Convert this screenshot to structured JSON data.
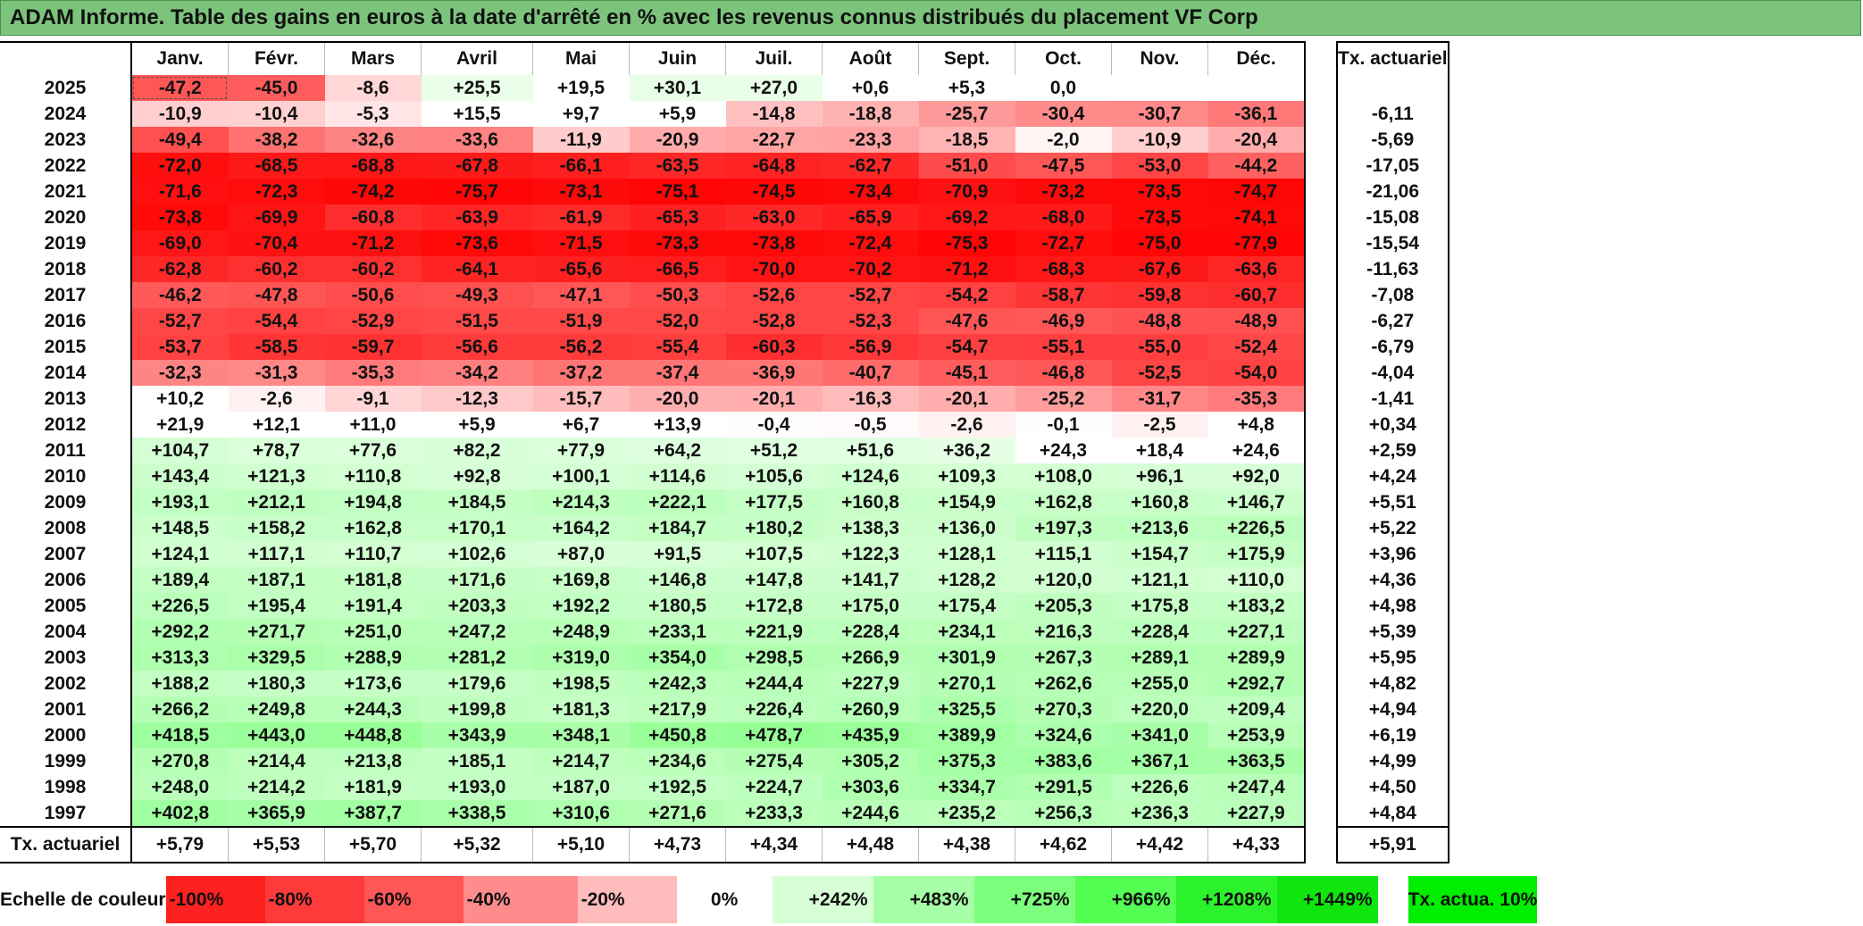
{
  "title": "ADAM Informe. Table des gains en euros à la date d'arrêté en % avec les revenus connus distribués du placement VF Corp",
  "months": [
    "Janv.",
    "Févr.",
    "Mars",
    "Avril",
    "Mai",
    "Juin",
    "Juil.",
    "Août",
    "Sept.",
    "Oct.",
    "Nov.",
    "Déc."
  ],
  "actuarial_header": "Tx. actuariel",
  "rows": [
    {
      "year": "2025",
      "values": [
        "-47,2",
        "-45,0",
        "-8,6",
        "+25,5",
        "+19,5",
        "+30,1",
        "+27,0",
        "+0,6",
        "+5,3",
        "0,0",
        "",
        ""
      ],
      "rate": ""
    },
    {
      "year": "2024",
      "values": [
        "-10,9",
        "-10,4",
        "-5,3",
        "+15,5",
        "+9,7",
        "+5,9",
        "-14,8",
        "-18,8",
        "-25,7",
        "-30,4",
        "-30,7",
        "-36,1"
      ],
      "rate": "-6,11"
    },
    {
      "year": "2023",
      "values": [
        "-49,4",
        "-38,2",
        "-32,6",
        "-33,6",
        "-11,9",
        "-20,9",
        "-22,7",
        "-23,3",
        "-18,5",
        "-2,0",
        "-10,9",
        "-20,4"
      ],
      "rate": "-5,69"
    },
    {
      "year": "2022",
      "values": [
        "-72,0",
        "-68,5",
        "-68,8",
        "-67,8",
        "-66,1",
        "-63,5",
        "-64,8",
        "-62,7",
        "-51,0",
        "-47,5",
        "-53,0",
        "-44,2"
      ],
      "rate": "-17,05"
    },
    {
      "year": "2021",
      "values": [
        "-71,6",
        "-72,3",
        "-74,2",
        "-75,7",
        "-73,1",
        "-75,1",
        "-74,5",
        "-73,4",
        "-70,9",
        "-73,2",
        "-73,5",
        "-74,7"
      ],
      "rate": "-21,06"
    },
    {
      "year": "2020",
      "values": [
        "-73,8",
        "-69,9",
        "-60,8",
        "-63,9",
        "-61,9",
        "-65,3",
        "-63,0",
        "-65,9",
        "-69,2",
        "-68,0",
        "-73,5",
        "-74,1"
      ],
      "rate": "-15,08"
    },
    {
      "year": "2019",
      "values": [
        "-69,0",
        "-70,4",
        "-71,2",
        "-73,6",
        "-71,5",
        "-73,3",
        "-73,8",
        "-72,4",
        "-75,3",
        "-72,7",
        "-75,0",
        "-77,9"
      ],
      "rate": "-15,54"
    },
    {
      "year": "2018",
      "values": [
        "-62,8",
        "-60,2",
        "-60,2",
        "-64,1",
        "-65,6",
        "-66,5",
        "-70,0",
        "-70,2",
        "-71,2",
        "-68,3",
        "-67,6",
        "-63,6"
      ],
      "rate": "-11,63"
    },
    {
      "year": "2017",
      "values": [
        "-46,2",
        "-47,8",
        "-50,6",
        "-49,3",
        "-47,1",
        "-50,3",
        "-52,6",
        "-52,7",
        "-54,2",
        "-58,7",
        "-59,8",
        "-60,7"
      ],
      "rate": "-7,08"
    },
    {
      "year": "2016",
      "values": [
        "-52,7",
        "-54,4",
        "-52,9",
        "-51,5",
        "-51,9",
        "-52,0",
        "-52,8",
        "-52,3",
        "-47,6",
        "-46,9",
        "-48,8",
        "-48,9"
      ],
      "rate": "-6,27"
    },
    {
      "year": "2015",
      "values": [
        "-53,7",
        "-58,5",
        "-59,7",
        "-56,6",
        "-56,2",
        "-55,4",
        "-60,3",
        "-56,9",
        "-54,7",
        "-55,1",
        "-55,0",
        "-52,4"
      ],
      "rate": "-6,79"
    },
    {
      "year": "2014",
      "values": [
        "-32,3",
        "-31,3",
        "-35,3",
        "-34,2",
        "-37,2",
        "-37,4",
        "-36,9",
        "-40,7",
        "-45,1",
        "-46,8",
        "-52,5",
        "-54,0"
      ],
      "rate": "-4,04"
    },
    {
      "year": "2013",
      "values": [
        "+10,2",
        "-2,6",
        "-9,1",
        "-12,3",
        "-15,7",
        "-20,0",
        "-20,1",
        "-16,3",
        "-20,1",
        "-25,2",
        "-31,7",
        "-35,3"
      ],
      "rate": "-1,41"
    },
    {
      "year": "2012",
      "values": [
        "+21,9",
        "+12,1",
        "+11,0",
        "+5,9",
        "+6,7",
        "+13,9",
        "-0,4",
        "-0,5",
        "-2,6",
        "-0,1",
        "-2,5",
        "+4,8"
      ],
      "rate": "+0,34"
    },
    {
      "year": "2011",
      "values": [
        "+104,7",
        "+78,7",
        "+77,6",
        "+82,2",
        "+77,9",
        "+64,2",
        "+51,2",
        "+51,6",
        "+36,2",
        "+24,3",
        "+18,4",
        "+24,6"
      ],
      "rate": "+2,59"
    },
    {
      "year": "2010",
      "values": [
        "+143,4",
        "+121,3",
        "+110,8",
        "+92,8",
        "+100,1",
        "+114,6",
        "+105,6",
        "+124,6",
        "+109,3",
        "+108,0",
        "+96,1",
        "+92,0"
      ],
      "rate": "+4,24"
    },
    {
      "year": "2009",
      "values": [
        "+193,1",
        "+212,1",
        "+194,8",
        "+184,5",
        "+214,3",
        "+222,1",
        "+177,5",
        "+160,8",
        "+154,9",
        "+162,8",
        "+160,8",
        "+146,7"
      ],
      "rate": "+5,51"
    },
    {
      "year": "2008",
      "values": [
        "+148,5",
        "+158,2",
        "+162,8",
        "+170,1",
        "+164,2",
        "+184,7",
        "+180,2",
        "+138,3",
        "+136,0",
        "+197,3",
        "+213,6",
        "+226,5"
      ],
      "rate": "+5,22"
    },
    {
      "year": "2007",
      "values": [
        "+124,1",
        "+117,1",
        "+110,7",
        "+102,6",
        "+87,0",
        "+91,5",
        "+107,5",
        "+122,3",
        "+128,1",
        "+115,1",
        "+154,7",
        "+175,9"
      ],
      "rate": "+3,96"
    },
    {
      "year": "2006",
      "values": [
        "+189,4",
        "+187,1",
        "+181,8",
        "+171,6",
        "+169,8",
        "+146,8",
        "+147,8",
        "+141,7",
        "+128,2",
        "+120,0",
        "+121,1",
        "+110,0"
      ],
      "rate": "+4,36"
    },
    {
      "year": "2005",
      "values": [
        "+226,5",
        "+195,4",
        "+191,4",
        "+203,3",
        "+192,2",
        "+180,5",
        "+172,8",
        "+175,0",
        "+175,4",
        "+205,3",
        "+175,8",
        "+183,2"
      ],
      "rate": "+4,98"
    },
    {
      "year": "2004",
      "values": [
        "+292,2",
        "+271,7",
        "+251,0",
        "+247,2",
        "+248,9",
        "+233,1",
        "+221,9",
        "+228,4",
        "+234,1",
        "+216,3",
        "+228,4",
        "+227,1"
      ],
      "rate": "+5,39"
    },
    {
      "year": "2003",
      "values": [
        "+313,3",
        "+329,5",
        "+288,9",
        "+281,2",
        "+319,0",
        "+354,0",
        "+298,5",
        "+266,9",
        "+301,9",
        "+267,3",
        "+289,1",
        "+289,9"
      ],
      "rate": "+5,95"
    },
    {
      "year": "2002",
      "values": [
        "+188,2",
        "+180,3",
        "+173,6",
        "+179,6",
        "+198,5",
        "+242,3",
        "+244,4",
        "+227,9",
        "+270,1",
        "+262,6",
        "+255,0",
        "+292,7"
      ],
      "rate": "+4,82"
    },
    {
      "year": "2001",
      "values": [
        "+266,2",
        "+249,8",
        "+244,3",
        "+199,8",
        "+181,3",
        "+217,9",
        "+226,4",
        "+260,9",
        "+325,5",
        "+270,3",
        "+220,0",
        "+209,4"
      ],
      "rate": "+4,94"
    },
    {
      "year": "2000",
      "values": [
        "+418,5",
        "+443,0",
        "+448,8",
        "+343,9",
        "+348,1",
        "+450,8",
        "+478,7",
        "+435,9",
        "+389,9",
        "+324,6",
        "+341,0",
        "+253,9"
      ],
      "rate": "+6,19"
    },
    {
      "year": "1999",
      "values": [
        "+270,8",
        "+214,4",
        "+213,8",
        "+185,1",
        "+214,7",
        "+234,6",
        "+275,4",
        "+305,2",
        "+375,3",
        "+383,6",
        "+367,1",
        "+363,5"
      ],
      "rate": "+4,99"
    },
    {
      "year": "1998",
      "values": [
        "+248,0",
        "+214,2",
        "+181,9",
        "+193,0",
        "+187,0",
        "+192,5",
        "+224,7",
        "+303,6",
        "+334,7",
        "+291,5",
        "+226,6",
        "+247,4"
      ],
      "rate": "+4,50"
    },
    {
      "year": "1997",
      "values": [
        "+402,8",
        "+365,9",
        "+387,7",
        "+338,5",
        "+310,6",
        "+271,6",
        "+233,3",
        "+244,6",
        "+235,2",
        "+256,3",
        "+236,3",
        "+227,9"
      ],
      "rate": "+4,84"
    }
  ],
  "actuarial_row": {
    "label": "Tx. actuariel",
    "values": [
      "+5,79",
      "+5,53",
      "+5,70",
      "+5,32",
      "+5,10",
      "+4,73",
      "+4,34",
      "+4,48",
      "+4,38",
      "+4,62",
      "+4,42",
      "+4,33"
    ],
    "total": "+5,91"
  },
  "legend": {
    "label": "Echelle de couleur",
    "items": [
      {
        "text": "-100%",
        "color": "#ff2020",
        "align": "left"
      },
      {
        "text": "-80%",
        "color": "#ff3a3a",
        "align": "left"
      },
      {
        "text": "-60%",
        "color": "#ff5656",
        "align": "left"
      },
      {
        "text": "-40%",
        "color": "#ff8c8c",
        "align": "left"
      },
      {
        "text": "-20%",
        "color": "#ffbcbc",
        "align": "left"
      },
      {
        "text": "0%",
        "color": "#ffffff",
        "align": "center"
      },
      {
        "text": "+242%",
        "color": "#d6ffd6",
        "align": "right"
      },
      {
        "text": "+483%",
        "color": "#a6ffa6",
        "align": "right"
      },
      {
        "text": "+725%",
        "color": "#7cff7c",
        "align": "right"
      },
      {
        "text": "+966%",
        "color": "#52ff52",
        "align": "right"
      },
      {
        "text": "+1208%",
        "color": "#2cf22c",
        "align": "right"
      },
      {
        "text": "+1449%",
        "color": "#0ee60e",
        "align": "right"
      }
    ],
    "rate_label": "Tx. actua. 10%",
    "rate_color": "#00ee00"
  },
  "colors": {
    "title_bg": "#7cc47c",
    "negative_max": "#ff0000",
    "positive_max": "#00e000"
  }
}
